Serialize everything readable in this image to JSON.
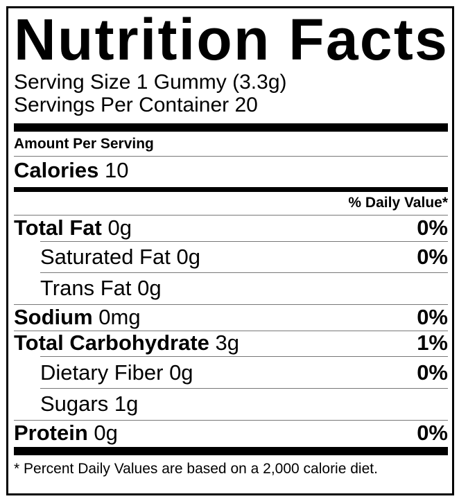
{
  "title": "Nutrition Facts",
  "serving_size": {
    "label": "Serving Size",
    "value": "1 Gummy (3.3g)"
  },
  "servings_per_container": {
    "label": "Servings Per Container",
    "value": "20"
  },
  "amount_per_serving": "Amount Per Serving",
  "calories": {
    "label": "Calories",
    "value": "10"
  },
  "daily_value_header": "% Daily Value*",
  "nutrients": [
    {
      "name": "Total Fat",
      "amount": "0g",
      "dv": "0%"
    },
    {
      "name": "Saturated Fat",
      "amount": "0g",
      "dv": "0%"
    },
    {
      "name": "Trans Fat",
      "amount": "0g",
      "dv": ""
    },
    {
      "name": "Sodium",
      "amount": "0mg",
      "dv": "0%"
    },
    {
      "name": "Total Carbohydrate",
      "amount": "3g",
      "dv": "1%"
    },
    {
      "name": "Dietary Fiber",
      "amount": "0g",
      "dv": "0%"
    },
    {
      "name": "Sugars",
      "amount": "1g",
      "dv": ""
    },
    {
      "name": "Protein",
      "amount": "0g",
      "dv": "0%"
    }
  ],
  "footnote": "* Percent Daily Values are based on a 2,000 calorie diet."
}
